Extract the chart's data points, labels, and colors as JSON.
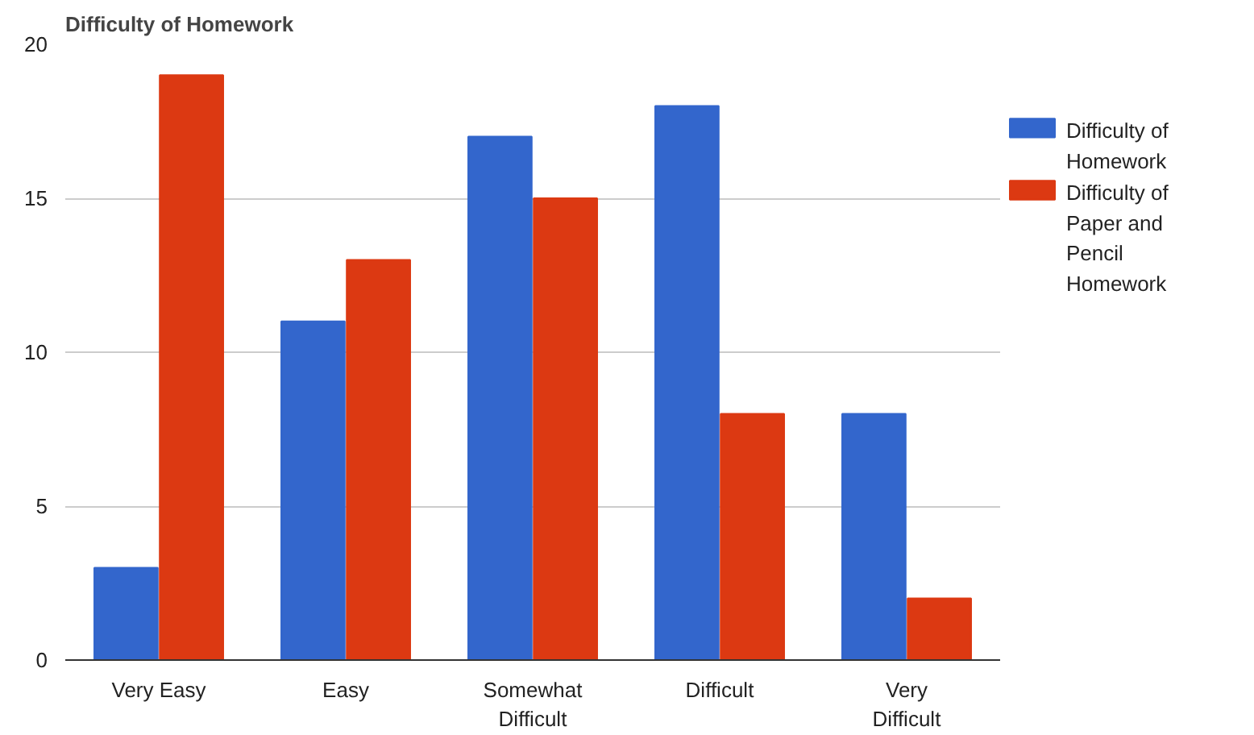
{
  "chart_data": {
    "type": "bar",
    "title": "Difficulty of Homework",
    "categories": [
      "Very Easy",
      "Easy",
      "Somewhat Difficult",
      "Difficult",
      "Very Difficult"
    ],
    "series": [
      {
        "name": "Difficulty of Homework",
        "color": "#3366cc",
        "values": [
          3,
          11,
          17,
          18,
          8
        ]
      },
      {
        "name": "Difficulty of Paper and Pencil Homework",
        "color": "#dc3912",
        "values": [
          19,
          13,
          15,
          8,
          2
        ]
      }
    ],
    "ylim": [
      0,
      20
    ],
    "yticks": [
      0,
      5,
      10,
      15,
      20
    ],
    "grid": "y",
    "legend": "right"
  }
}
